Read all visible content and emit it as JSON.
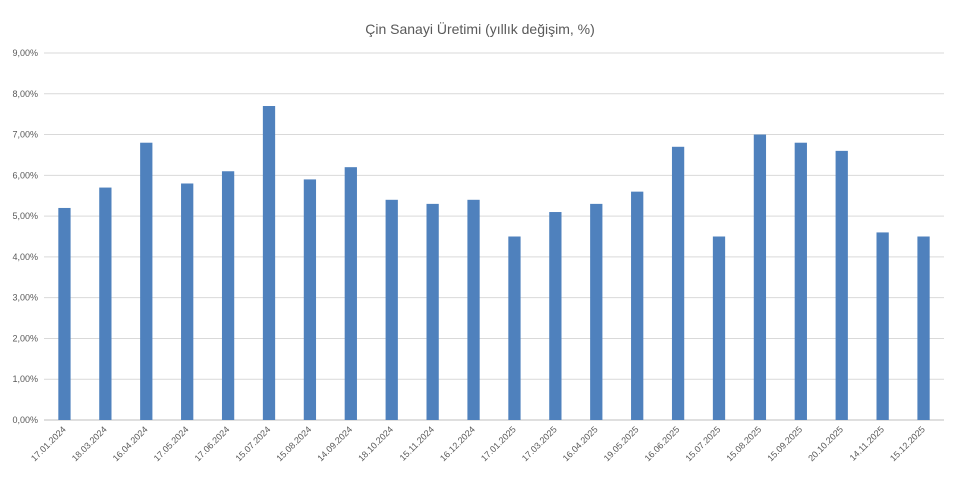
{
  "chart_data": {
    "type": "bar",
    "title": "Çin Sanayi Üretimi (yıllık değişim, %)",
    "xlabel": "",
    "ylabel": "",
    "categories": [
      "17.01.2024",
      "18.03.2024",
      "16.04.2024",
      "17.05.2024",
      "17.06.2024",
      "15.07.2024",
      "15.08.2024",
      "14.09.2024",
      "18.10.2024",
      "15.11.2024",
      "16.12.2024",
      "17.01.2025",
      "17.03.2025",
      "16.04.2025",
      "19.05.2025",
      "16.06.2025",
      "15.07.2025",
      "15.08.2025",
      "15.09.2025",
      "20.10.2025",
      "14.11.2025",
      "15.12.2025"
    ],
    "values": [
      5.2,
      5.7,
      6.8,
      5.8,
      6.1,
      7.7,
      5.9,
      6.2,
      5.4,
      5.3,
      5.4,
      4.5,
      5.1,
      5.3,
      5.6,
      6.7,
      4.5,
      7.0,
      6.8,
      6.6,
      4.6,
      4.5
    ],
    "ylim": [
      0,
      9
    ],
    "yticks": [
      "0,00%",
      "1,00%",
      "2,00%",
      "3,00%",
      "4,00%",
      "5,00%",
      "6,00%",
      "7,00%",
      "8,00%",
      "9,00%"
    ],
    "grid": true,
    "legend": "none",
    "bar_color": "#4f81bd"
  }
}
